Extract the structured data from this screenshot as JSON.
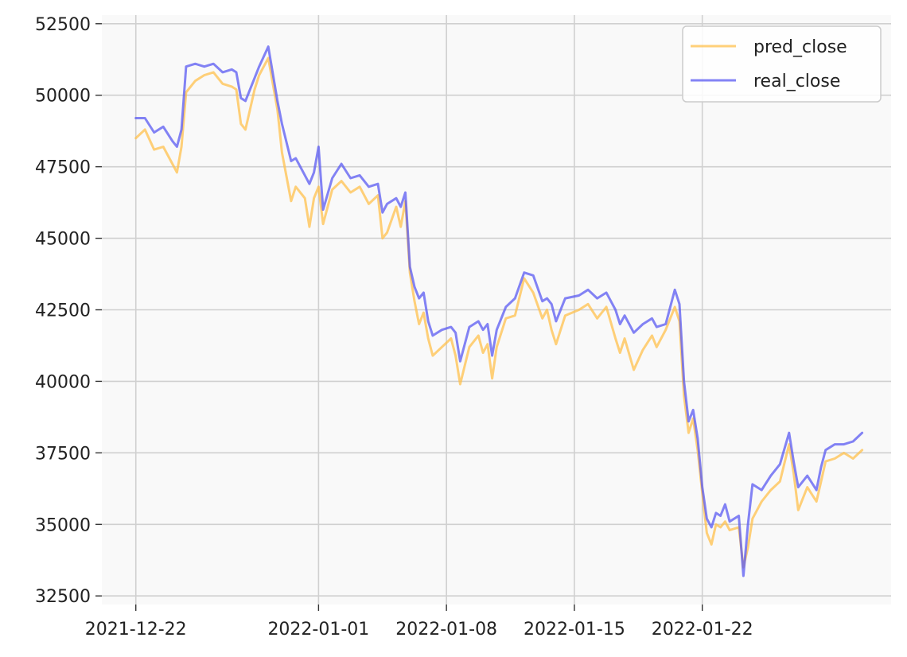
{
  "chart_data": {
    "type": "line",
    "title": "",
    "xlabel": "",
    "ylabel": "",
    "x_type": "datetime",
    "xlim": [
      "2021-12-22",
      "2022-02-01T08:00"
    ],
    "ylim": [
      32200,
      52800
    ],
    "grid": true,
    "legend_position": "top-right",
    "x_ticks": [
      "2021-12-22",
      "2022-01-01",
      "2022-01-08",
      "2022-01-15",
      "2022-01-22"
    ],
    "y_ticks": [
      32500,
      35000,
      37500,
      40000,
      42500,
      45000,
      47500,
      50000,
      52500
    ],
    "series": [
      {
        "name": "pred_close",
        "color": "#FFC04C",
        "points": [
          [
            "2021-12-22T00:00",
            48500
          ],
          [
            "2021-12-22T12:00",
            48800
          ],
          [
            "2021-12-23T00:00",
            48100
          ],
          [
            "2021-12-23T12:00",
            48200
          ],
          [
            "2021-12-24T00:00",
            47600
          ],
          [
            "2021-12-24T06:00",
            47300
          ],
          [
            "2021-12-24T12:00",
            48200
          ],
          [
            "2021-12-24T18:00",
            50100
          ],
          [
            "2021-12-25T06:00",
            50500
          ],
          [
            "2021-12-25T18:00",
            50700
          ],
          [
            "2021-12-26T06:00",
            50800
          ],
          [
            "2021-12-26T18:00",
            50400
          ],
          [
            "2021-12-27T06:00",
            50300
          ],
          [
            "2021-12-27T12:00",
            50200
          ],
          [
            "2021-12-27T18:00",
            49000
          ],
          [
            "2021-12-28T00:00",
            48800
          ],
          [
            "2021-12-28T12:00",
            50200
          ],
          [
            "2021-12-28T18:00",
            50700
          ],
          [
            "2021-12-29T06:00",
            51300
          ],
          [
            "2021-12-29T18:00",
            49500
          ],
          [
            "2021-12-30T00:00",
            48000
          ],
          [
            "2021-12-30T12:00",
            46300
          ],
          [
            "2021-12-30T18:00",
            46800
          ],
          [
            "2021-12-31T06:00",
            46400
          ],
          [
            "2021-12-31T12:00",
            45400
          ],
          [
            "2021-12-31T18:00",
            46400
          ],
          [
            "2022-01-01T00:00",
            46800
          ],
          [
            "2022-01-01T06:00",
            45500
          ],
          [
            "2022-01-01T18:00",
            46700
          ],
          [
            "2022-01-02T06:00",
            47000
          ],
          [
            "2022-01-02T18:00",
            46600
          ],
          [
            "2022-01-03T06:00",
            46800
          ],
          [
            "2022-01-03T18:00",
            46200
          ],
          [
            "2022-01-04T06:00",
            46500
          ],
          [
            "2022-01-04T12:00",
            45000
          ],
          [
            "2022-01-04T18:00",
            45200
          ],
          [
            "2022-01-05T06:00",
            46100
          ],
          [
            "2022-01-05T12:00",
            45400
          ],
          [
            "2022-01-05T18:00",
            46300
          ],
          [
            "2022-01-06T00:00",
            43800
          ],
          [
            "2022-01-06T06:00",
            42800
          ],
          [
            "2022-01-06T12:00",
            42000
          ],
          [
            "2022-01-06T18:00",
            42400
          ],
          [
            "2022-01-07T00:00",
            41500
          ],
          [
            "2022-01-07T06:00",
            40900
          ],
          [
            "2022-01-07T18:00",
            41200
          ],
          [
            "2022-01-08T06:00",
            41500
          ],
          [
            "2022-01-08T12:00",
            40900
          ],
          [
            "2022-01-08T18:00",
            39900
          ],
          [
            "2022-01-09T06:00",
            41200
          ],
          [
            "2022-01-09T18:00",
            41600
          ],
          [
            "2022-01-10T00:00",
            41000
          ],
          [
            "2022-01-10T06:00",
            41300
          ],
          [
            "2022-01-10T12:00",
            40100
          ],
          [
            "2022-01-10T18:00",
            41200
          ],
          [
            "2022-01-11T06:00",
            42200
          ],
          [
            "2022-01-11T18:00",
            42300
          ],
          [
            "2022-01-12T06:00",
            43600
          ],
          [
            "2022-01-12T18:00",
            43100
          ],
          [
            "2022-01-13T06:00",
            42200
          ],
          [
            "2022-01-13T12:00",
            42500
          ],
          [
            "2022-01-13T18:00",
            41800
          ],
          [
            "2022-01-14T00:00",
            41300
          ],
          [
            "2022-01-14T12:00",
            42300
          ],
          [
            "2022-01-15T06:00",
            42500
          ],
          [
            "2022-01-15T18:00",
            42700
          ],
          [
            "2022-01-16T06:00",
            42200
          ],
          [
            "2022-01-16T18:00",
            42600
          ],
          [
            "2022-01-17T06:00",
            41500
          ],
          [
            "2022-01-17T12:00",
            41000
          ],
          [
            "2022-01-17T18:00",
            41500
          ],
          [
            "2022-01-18T06:00",
            40400
          ],
          [
            "2022-01-18T18:00",
            41100
          ],
          [
            "2022-01-19T06:00",
            41600
          ],
          [
            "2022-01-19T12:00",
            41200
          ],
          [
            "2022-01-20T00:00",
            41800
          ],
          [
            "2022-01-20T12:00",
            42600
          ],
          [
            "2022-01-20T18:00",
            42100
          ],
          [
            "2022-01-21T00:00",
            39500
          ],
          [
            "2022-01-21T06:00",
            38200
          ],
          [
            "2022-01-21T12:00",
            38700
          ],
          [
            "2022-01-21T18:00",
            37600
          ],
          [
            "2022-01-22T00:00",
            36100
          ],
          [
            "2022-01-22T06:00",
            34700
          ],
          [
            "2022-01-22T12:00",
            34300
          ],
          [
            "2022-01-22T18:00",
            35000
          ],
          [
            "2022-01-23T00:00",
            34900
          ],
          [
            "2022-01-23T06:00",
            35100
          ],
          [
            "2022-01-23T12:00",
            34800
          ],
          [
            "2022-01-24T00:00",
            34900
          ],
          [
            "2022-01-24T06:00",
            33500
          ],
          [
            "2022-01-24T12:00",
            34200
          ],
          [
            "2022-01-24T18:00",
            35200
          ],
          [
            "2022-01-25T06:00",
            35800
          ],
          [
            "2022-01-25T18:00",
            36200
          ],
          [
            "2022-01-26T06:00",
            36500
          ],
          [
            "2022-01-26T18:00",
            37800
          ],
          [
            "2022-01-27T00:00",
            36800
          ],
          [
            "2022-01-27T06:00",
            35500
          ],
          [
            "2022-01-27T18:00",
            36300
          ],
          [
            "2022-01-28T06:00",
            35800
          ],
          [
            "2022-01-28T12:00",
            36500
          ],
          [
            "2022-01-28T18:00",
            37200
          ],
          [
            "2022-01-29T06:00",
            37300
          ],
          [
            "2022-01-29T18:00",
            37500
          ],
          [
            "2022-01-30T06:00",
            37300
          ],
          [
            "2022-01-30T18:00",
            37600
          ]
        ]
      },
      {
        "name": "real_close",
        "color": "#5A5AF2",
        "points": [
          [
            "2021-12-22T00:00",
            49200
          ],
          [
            "2021-12-22T12:00",
            49200
          ],
          [
            "2021-12-23T00:00",
            48700
          ],
          [
            "2021-12-23T12:00",
            48900
          ],
          [
            "2021-12-24T00:00",
            48400
          ],
          [
            "2021-12-24T06:00",
            48200
          ],
          [
            "2021-12-24T12:00",
            48800
          ],
          [
            "2021-12-24T18:00",
            51000
          ],
          [
            "2021-12-25T06:00",
            51100
          ],
          [
            "2021-12-25T18:00",
            51000
          ],
          [
            "2021-12-26T06:00",
            51100
          ],
          [
            "2021-12-26T18:00",
            50800
          ],
          [
            "2021-12-27T06:00",
            50900
          ],
          [
            "2021-12-27T12:00",
            50800
          ],
          [
            "2021-12-27T18:00",
            49900
          ],
          [
            "2021-12-28T00:00",
            49800
          ],
          [
            "2021-12-28T12:00",
            50600
          ],
          [
            "2021-12-28T18:00",
            51000
          ],
          [
            "2021-12-29T06:00",
            51700
          ],
          [
            "2021-12-29T18:00",
            49800
          ],
          [
            "2021-12-30T00:00",
            49000
          ],
          [
            "2021-12-30T12:00",
            47700
          ],
          [
            "2021-12-30T18:00",
            47800
          ],
          [
            "2021-12-31T06:00",
            47200
          ],
          [
            "2021-12-31T12:00",
            46900
          ],
          [
            "2021-12-31T18:00",
            47300
          ],
          [
            "2022-01-01T00:00",
            48200
          ],
          [
            "2022-01-01T06:00",
            46000
          ],
          [
            "2022-01-01T18:00",
            47100
          ],
          [
            "2022-01-02T06:00",
            47600
          ],
          [
            "2022-01-02T18:00",
            47100
          ],
          [
            "2022-01-03T06:00",
            47200
          ],
          [
            "2022-01-03T18:00",
            46800
          ],
          [
            "2022-01-04T06:00",
            46900
          ],
          [
            "2022-01-04T12:00",
            45900
          ],
          [
            "2022-01-04T18:00",
            46200
          ],
          [
            "2022-01-05T06:00",
            46400
          ],
          [
            "2022-01-05T12:00",
            46100
          ],
          [
            "2022-01-05T18:00",
            46600
          ],
          [
            "2022-01-06T00:00",
            44000
          ],
          [
            "2022-01-06T06:00",
            43300
          ],
          [
            "2022-01-06T12:00",
            42900
          ],
          [
            "2022-01-06T18:00",
            43100
          ],
          [
            "2022-01-07T00:00",
            42100
          ],
          [
            "2022-01-07T06:00",
            41600
          ],
          [
            "2022-01-07T18:00",
            41800
          ],
          [
            "2022-01-08T06:00",
            41900
          ],
          [
            "2022-01-08T12:00",
            41700
          ],
          [
            "2022-01-08T18:00",
            40700
          ],
          [
            "2022-01-09T06:00",
            41900
          ],
          [
            "2022-01-09T18:00",
            42100
          ],
          [
            "2022-01-10T00:00",
            41800
          ],
          [
            "2022-01-10T06:00",
            42000
          ],
          [
            "2022-01-10T12:00",
            40900
          ],
          [
            "2022-01-10T18:00",
            41800
          ],
          [
            "2022-01-11T06:00",
            42600
          ],
          [
            "2022-01-11T18:00",
            42900
          ],
          [
            "2022-01-12T06:00",
            43800
          ],
          [
            "2022-01-12T18:00",
            43700
          ],
          [
            "2022-01-13T06:00",
            42800
          ],
          [
            "2022-01-13T12:00",
            42900
          ],
          [
            "2022-01-13T18:00",
            42700
          ],
          [
            "2022-01-14T00:00",
            42100
          ],
          [
            "2022-01-14T12:00",
            42900
          ],
          [
            "2022-01-15T06:00",
            43000
          ],
          [
            "2022-01-15T18:00",
            43200
          ],
          [
            "2022-01-16T06:00",
            42900
          ],
          [
            "2022-01-16T18:00",
            43100
          ],
          [
            "2022-01-17T06:00",
            42500
          ],
          [
            "2022-01-17T12:00",
            42000
          ],
          [
            "2022-01-17T18:00",
            42300
          ],
          [
            "2022-01-18T06:00",
            41700
          ],
          [
            "2022-01-18T18:00",
            42000
          ],
          [
            "2022-01-19T06:00",
            42200
          ],
          [
            "2022-01-19T12:00",
            41900
          ],
          [
            "2022-01-20T00:00",
            42000
          ],
          [
            "2022-01-20T12:00",
            43200
          ],
          [
            "2022-01-20T18:00",
            42700
          ],
          [
            "2022-01-21T00:00",
            40000
          ],
          [
            "2022-01-21T06:00",
            38600
          ],
          [
            "2022-01-21T12:00",
            39000
          ],
          [
            "2022-01-21T18:00",
            38000
          ],
          [
            "2022-01-22T00:00",
            36300
          ],
          [
            "2022-01-22T06:00",
            35200
          ],
          [
            "2022-01-22T12:00",
            34900
          ],
          [
            "2022-01-22T18:00",
            35400
          ],
          [
            "2022-01-23T00:00",
            35300
          ],
          [
            "2022-01-23T06:00",
            35700
          ],
          [
            "2022-01-23T12:00",
            35100
          ],
          [
            "2022-01-24T00:00",
            35300
          ],
          [
            "2022-01-24T06:00",
            33200
          ],
          [
            "2022-01-24T12:00",
            35000
          ],
          [
            "2022-01-24T18:00",
            36400
          ],
          [
            "2022-01-25T06:00",
            36200
          ],
          [
            "2022-01-25T18:00",
            36700
          ],
          [
            "2022-01-26T06:00",
            37100
          ],
          [
            "2022-01-26T18:00",
            38200
          ],
          [
            "2022-01-27T00:00",
            37200
          ],
          [
            "2022-01-27T06:00",
            36300
          ],
          [
            "2022-01-27T18:00",
            36700
          ],
          [
            "2022-01-28T06:00",
            36200
          ],
          [
            "2022-01-28T12:00",
            37000
          ],
          [
            "2022-01-28T18:00",
            37600
          ],
          [
            "2022-01-29T06:00",
            37800
          ],
          [
            "2022-01-29T18:00",
            37800
          ],
          [
            "2022-01-30T06:00",
            37900
          ],
          [
            "2022-01-30T18:00",
            38200
          ]
        ]
      }
    ]
  }
}
